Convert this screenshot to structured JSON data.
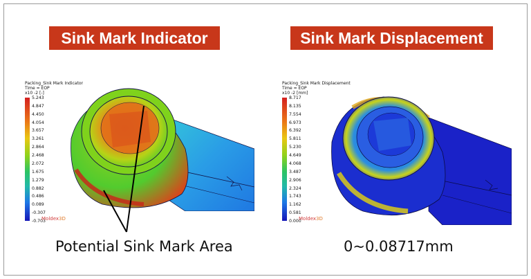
{
  "left_panel": {
    "title": "Sink Mark Indicator",
    "legend_line1": "Packing_Sink Mark Indicator",
    "legend_line2": "Time = EOP",
    "legend_line3": "x10  -2   [-]",
    "ticks": [
      "5.243",
      "4.847",
      "4.450",
      "4.054",
      "3.657",
      "3.261",
      "2.864",
      "2.468",
      "2.072",
      "1.675",
      "1.279",
      "0.882",
      "0.486",
      "0.089",
      "-0.307",
      "-0.703"
    ],
    "brand": "Moldex",
    "caption": "Potential Sink Mark Area"
  },
  "right_panel": {
    "title": "Sink Mark Displacement",
    "legend_line1": "Packing_Sink Mark Displacement",
    "legend_line2": "Time = EOP",
    "legend_line3": "x10  -2   [mm]",
    "ticks": [
      "8.717",
      "8.135",
      "7.554",
      "6.973",
      "6.392",
      "5.811",
      "5.230",
      "4.649",
      "4.068",
      "3.487",
      "2.906",
      "2.324",
      "1.743",
      "1.162",
      "0.581",
      "0.000"
    ],
    "brand": "Moldex",
    "caption": "0~0.08717mm"
  },
  "colors": {
    "banner": "#c8371a",
    "scale": [
      "#d42020",
      "#e04a1a",
      "#eb7a17",
      "#f2a214",
      "#e9c712",
      "#c6d414",
      "#8fd21b",
      "#4ccc24",
      "#2cc463",
      "#22b9a9",
      "#1f9fd9",
      "#1d78e6",
      "#1b4fe0",
      "#1a2fd0",
      "#1616b8"
    ]
  }
}
